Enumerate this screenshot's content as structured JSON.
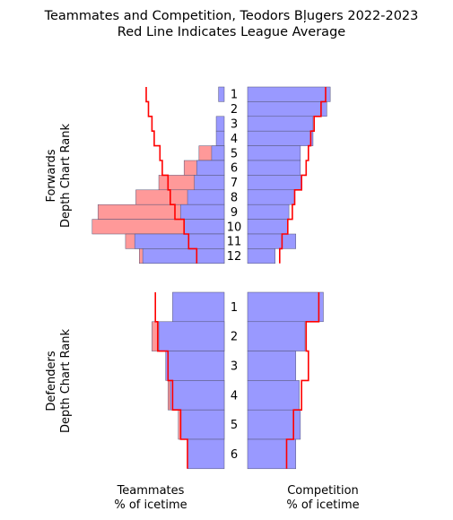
{
  "chart_data": {
    "type": "bar",
    "title": "Teammates and Competition, Teodors Bļugers 2022-2023",
    "subtitle": "Red Line Indicates League Average",
    "x_scale_max": 100,
    "colors": {
      "blue_fill": "#9999ff",
      "red_fill": "#ff9999",
      "league_line": "#ff0000",
      "bar_edge": "#555577"
    },
    "bottom_labels": {
      "teammates": [
        "Teammates",
        "% of icetime"
      ],
      "competition": [
        "Competition",
        "% of icetime"
      ]
    },
    "panels": [
      {
        "name": "forwards",
        "ylabel": [
          "Forwards",
          "Depth Chart Rank"
        ],
        "ranks": [
          "1",
          "2",
          "3",
          "4",
          "5",
          "6",
          "7",
          "8",
          "9",
          "10",
          "11",
          "12"
        ],
        "teammates_blue": [
          5,
          0,
          7,
          7,
          11,
          24,
          26,
          32,
          38,
          35,
          78,
          71
        ],
        "teammates_red": [
          0,
          0,
          0,
          0,
          11,
          11,
          31,
          45,
          72,
          80,
          8,
          3
        ],
        "teammates_league": [
          68,
          66,
          63,
          61,
          56,
          54,
          49,
          47,
          43,
          35,
          31,
          24
        ],
        "competition_blue": [
          72,
          69,
          57,
          57,
          46,
          46,
          47,
          41,
          36,
          35,
          42,
          24
        ],
        "competition_league": [
          68,
          64,
          58,
          55,
          53,
          51,
          47,
          41,
          39,
          35,
          30,
          28
        ]
      },
      {
        "name": "defenders",
        "ylabel": [
          "Defenders",
          "Depth Chart Rank"
        ],
        "ranks": [
          "1",
          "2",
          "3",
          "4",
          "5",
          "6"
        ],
        "teammates_blue": [
          45,
          57,
          51,
          47,
          38,
          32
        ],
        "teammates_red": [
          0,
          6,
          0,
          2,
          2,
          0
        ],
        "teammates_league": [
          60,
          58,
          49,
          45,
          38,
          32
        ],
        "competition_blue": [
          66,
          50,
          42,
          45,
          46,
          42
        ],
        "competition_league": [
          62,
          51,
          53,
          47,
          40,
          34
        ]
      }
    ]
  }
}
